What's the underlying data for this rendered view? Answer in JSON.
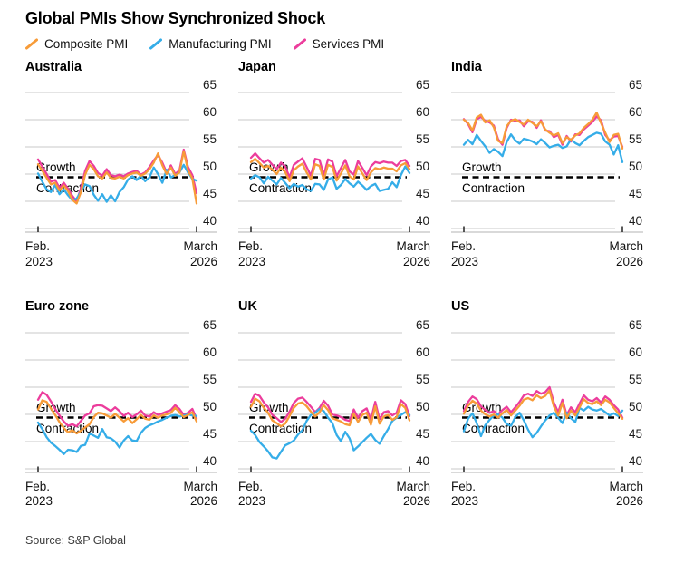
{
  "header": {
    "title": "Global PMIs Show Synchronized Shock"
  },
  "legend": {
    "items": [
      {
        "label": "Composite PMI",
        "series_key": "composite",
        "color": "#F79B38",
        "icon": "line-slash-icon"
      },
      {
        "label": "Manufacturing PMI",
        "series_key": "manufacturing",
        "color": "#35ADE8",
        "icon": "line-slash-icon"
      },
      {
        "label": "Services PMI",
        "series_key": "services",
        "color": "#EC3D9C",
        "icon": "line-slash-icon"
      }
    ]
  },
  "footer": {
    "source": "Source: S&P Global"
  },
  "style_colors": {
    "gridline": "#C9C9C9",
    "axis_line": "#B3B3B3",
    "tick_mark": "#222222",
    "threshold_dash": "#000000",
    "tick_label": "#1a1a1a",
    "annotation_text": "#000000"
  },
  "chart_data": {
    "type": "line",
    "title": "Global PMIs Show Synchronized Shock",
    "n_points": 38,
    "x_axis": {
      "start": [
        "Feb.",
        "2023"
      ],
      "end": [
        "March",
        "2026"
      ]
    },
    "y_ticks": [
      65,
      60,
      55,
      50,
      45,
      40
    ],
    "y_range": [
      40,
      65
    ],
    "grid": "on",
    "legend_position": "top",
    "threshold": {
      "value": 50,
      "growth_label": "Growth",
      "contraction_label": "Contraction"
    },
    "series_order": [
      "services",
      "manufacturing",
      "composite"
    ],
    "panels": [
      {
        "title": "Australia",
        "series": {
          "composite": [
            51.8,
            50.6,
            49.3,
            48.1,
            48.4,
            47.0,
            47.9,
            46.9,
            45.3,
            44.6,
            46.7,
            49.9,
            51.7,
            50.9,
            49.6,
            49.2,
            50.3,
            49.3,
            49.2,
            49.5,
            49.2,
            49.8,
            50.1,
            50.3,
            49.7,
            50.1,
            50.9,
            52.1,
            53.8,
            51.6,
            50.0,
            51.2,
            49.7,
            50.3,
            54.2,
            50.7,
            49.2,
            44.6
          ],
          "manufacturing": [
            50.1,
            48.6,
            47.2,
            46.7,
            48.0,
            46.3,
            47.2,
            46.1,
            45.2,
            45.5,
            46.8,
            48.1,
            47.8,
            46.2,
            45.1,
            46.3,
            44.9,
            46.1,
            45.0,
            46.7,
            47.6,
            49.0,
            49.6,
            48.9,
            49.7,
            48.7,
            49.4,
            51.2,
            50.0,
            48.4,
            50.8,
            49.4,
            49.8,
            50.3,
            51.7,
            50.3,
            49.1,
            48.8
          ],
          "services": [
            52.7,
            51.4,
            50.0,
            48.6,
            48.9,
            47.5,
            48.4,
            47.3,
            46.0,
            45.0,
            47.4,
            50.6,
            52.4,
            51.5,
            50.2,
            49.7,
            50.9,
            49.8,
            49.6,
            49.9,
            49.6,
            50.1,
            50.4,
            50.6,
            49.9,
            50.3,
            51.3,
            52.5,
            53.5,
            52.1,
            50.3,
            51.6,
            50.0,
            50.7,
            54.5,
            51.3,
            49.8,
            46.5
          ]
        }
      },
      {
        "title": "Japan",
        "series": {
          "composite": [
            52.2,
            52.8,
            52.0,
            51.2,
            51.5,
            50.8,
            50.0,
            51.2,
            50.4,
            48.7,
            50.7,
            51.4,
            51.9,
            50.3,
            49.0,
            51.8,
            51.5,
            49.0,
            51.7,
            51.3,
            48.8,
            50.1,
            51.6,
            49.6,
            49.0,
            51.4,
            50.1,
            48.9,
            50.3,
            51.1,
            50.9,
            51.2,
            51.0,
            51.0,
            50.5,
            51.6,
            52.0,
            50.9
          ],
          "manufacturing": [
            49.2,
            49.8,
            49.4,
            48.3,
            49.5,
            48.8,
            48.1,
            49.3,
            48.4,
            47.4,
            48.2,
            47.7,
            48.0,
            47.2,
            46.9,
            48.2,
            48.1,
            47.1,
            49.0,
            49.4,
            47.3,
            48.0,
            49.1,
            48.3,
            47.7,
            48.6,
            47.9,
            47.1,
            47.8,
            48.2,
            46.9,
            47.1,
            47.3,
            48.5,
            47.6,
            49.8,
            51.4,
            50.2
          ],
          "services": [
            53.0,
            53.8,
            52.9,
            52.1,
            52.6,
            51.7,
            50.9,
            52.1,
            51.4,
            49.4,
            51.7,
            52.3,
            52.9,
            51.3,
            49.7,
            52.8,
            52.6,
            49.8,
            52.7,
            52.3,
            49.6,
            51.1,
            52.6,
            50.5,
            49.9,
            52.4,
            51.1,
            49.8,
            51.4,
            52.2,
            52.0,
            52.3,
            52.1,
            52.1,
            51.5,
            52.4,
            52.6,
            51.5
          ]
        }
      },
      {
        "title": "India",
        "series": {
          "composite": [
            60.0,
            59.4,
            58.0,
            60.4,
            60.9,
            59.5,
            59.9,
            58.6,
            56.1,
            55.7,
            58.8,
            59.8,
            60.1,
            59.6,
            59.1,
            60.0,
            59.4,
            58.8,
            59.7,
            58.2,
            57.6,
            57.1,
            57.5,
            55.7,
            56.8,
            56.3,
            57.1,
            57.5,
            58.5,
            59.2,
            60.0,
            61.3,
            59.4,
            57.6,
            55.9,
            57.2,
            57.4,
            54.7
          ],
          "manufacturing": [
            55.4,
            56.3,
            55.5,
            57.2,
            56.1,
            55.1,
            53.9,
            54.6,
            54.1,
            53.3,
            55.9,
            57.3,
            56.2,
            55.6,
            56.5,
            56.3,
            56.0,
            55.5,
            56.4,
            55.7,
            54.9,
            55.2,
            55.4,
            54.8,
            55.1,
            56.4,
            55.7,
            55.3,
            56.1,
            56.8,
            57.2,
            57.6,
            57.4,
            56.0,
            55.4,
            53.6,
            55.3,
            52.2
          ],
          "services": [
            60.1,
            59.2,
            57.7,
            60.1,
            60.5,
            59.8,
            59.5,
            58.9,
            56.4,
            55.4,
            58.5,
            60.0,
            59.8,
            59.9,
            58.8,
            59.7,
            59.6,
            58.5,
            59.9,
            58.0,
            57.9,
            56.8,
            57.2,
            55.4,
            57.0,
            56.0,
            57.3,
            57.2,
            58.2,
            58.9,
            59.6,
            60.6,
            59.9,
            57.2,
            56.2,
            56.9,
            57.0,
            55.0
          ]
        }
      },
      {
        "title": "Euro zone",
        "series": {
          "composite": [
            50.9,
            52.6,
            52.3,
            51.1,
            49.9,
            48.6,
            47.5,
            46.7,
            47.1,
            46.5,
            47.0,
            47.6,
            48.2,
            49.5,
            50.3,
            50.2,
            49.8,
            49.4,
            50.1,
            49.4,
            48.7,
            49.3,
            48.4,
            49.1,
            49.9,
            49.2,
            49.0,
            49.8,
            49.4,
            49.8,
            50.0,
            50.3,
            51.2,
            50.4,
            49.5,
            49.9,
            50.4,
            48.7
          ],
          "manufacturing": [
            48.5,
            47.3,
            45.8,
            44.8,
            44.2,
            43.5,
            42.7,
            43.5,
            43.4,
            43.1,
            44.2,
            44.4,
            46.5,
            46.1,
            45.7,
            47.3,
            45.8,
            45.6,
            45.0,
            43.9,
            45.2,
            46.0,
            45.2,
            45.1,
            46.6,
            47.5,
            48.0,
            48.3,
            48.7,
            49.0,
            49.4,
            49.7,
            49.9,
            49.6,
            49.8,
            50.0,
            49.8,
            49.7
          ],
          "services": [
            52.7,
            54.1,
            53.6,
            52.4,
            51.0,
            49.8,
            48.7,
            47.9,
            48.2,
            47.8,
            48.8,
            49.8,
            50.2,
            51.5,
            51.7,
            51.6,
            51.1,
            50.6,
            51.3,
            50.6,
            49.7,
            50.3,
            49.5,
            50.0,
            50.7,
            49.8,
            49.6,
            50.4,
            49.9,
            50.2,
            50.5,
            50.8,
            51.7,
            51.0,
            49.9,
            50.3,
            51.0,
            49.2
          ]
        }
      },
      {
        "title": "UK",
        "series": {
          "composite": [
            51.4,
            52.9,
            52.4,
            51.2,
            50.3,
            48.9,
            48.4,
            47.8,
            48.3,
            49.7,
            51.2,
            52.0,
            52.2,
            51.5,
            50.5,
            49.6,
            50.4,
            51.7,
            50.8,
            49.3,
            49.0,
            48.7,
            48.2,
            48.0,
            50.1,
            48.6,
            49.9,
            50.3,
            48.1,
            51.5,
            48.3,
            49.6,
            49.9,
            49.0,
            49.5,
            51.9,
            51.2,
            48.9
          ],
          "manufacturing": [
            47.0,
            46.2,
            44.9,
            44.1,
            43.2,
            42.1,
            41.9,
            43.1,
            44.3,
            44.7,
            45.2,
            46.3,
            47.1,
            48.8,
            49.9,
            50.3,
            51.0,
            50.6,
            49.4,
            48.4,
            46.2,
            45.1,
            46.8,
            45.6,
            43.4,
            44.1,
            44.9,
            45.7,
            46.4,
            45.3,
            44.6,
            46.0,
            47.3,
            48.8,
            49.4,
            49.9,
            50.4,
            49.9
          ],
          "services": [
            52.3,
            53.8,
            53.4,
            52.2,
            51.3,
            49.9,
            49.3,
            48.6,
            49.2,
            50.5,
            52.1,
            52.9,
            53.1,
            52.3,
            51.4,
            50.4,
            51.2,
            52.5,
            51.6,
            50.0,
            49.8,
            49.5,
            49.0,
            48.8,
            50.9,
            49.4,
            50.6,
            51.1,
            49.0,
            52.3,
            49.1,
            50.4,
            50.6,
            49.8,
            50.3,
            52.6,
            51.9,
            49.7
          ]
        }
      },
      {
        "title": "US",
        "series": {
          "composite": [
            50.1,
            51.6,
            52.5,
            52.0,
            50.7,
            50.0,
            49.6,
            50.0,
            49.4,
            50.2,
            50.8,
            49.8,
            50.7,
            51.6,
            52.7,
            53.0,
            52.6,
            53.5,
            53.0,
            53.4,
            54.4,
            51.5,
            49.8,
            52.1,
            49.3,
            50.7,
            49.8,
            51.3,
            52.8,
            52.1,
            51.9,
            52.4,
            51.7,
            52.7,
            52.2,
            51.2,
            50.2,
            49.2
          ],
          "manufacturing": [
            46.9,
            49.2,
            50.2,
            48.4,
            46.0,
            48.0,
            49.0,
            49.8,
            50.0,
            49.4,
            48.2,
            47.9,
            49.5,
            50.3,
            48.9,
            47.2,
            45.8,
            46.6,
            47.8,
            48.9,
            49.8,
            50.3,
            49.4,
            48.4,
            50.3,
            49.3,
            48.6,
            51.2,
            50.7,
            51.4,
            50.9,
            50.7,
            51.0,
            50.4,
            49.8,
            50.2,
            49.7,
            50.7
          ],
          "services": [
            50.6,
            52.3,
            53.3,
            52.8,
            51.5,
            50.8,
            50.3,
            50.6,
            50.0,
            50.8,
            51.4,
            50.4,
            51.3,
            52.3,
            53.5,
            53.8,
            53.4,
            54.3,
            53.8,
            54.1,
            55.0,
            52.2,
            50.4,
            52.7,
            49.9,
            51.3,
            50.4,
            52.0,
            53.5,
            52.7,
            52.4,
            53.0,
            52.2,
            53.3,
            52.7,
            51.7,
            50.9,
            49.4
          ]
        }
      }
    ]
  }
}
